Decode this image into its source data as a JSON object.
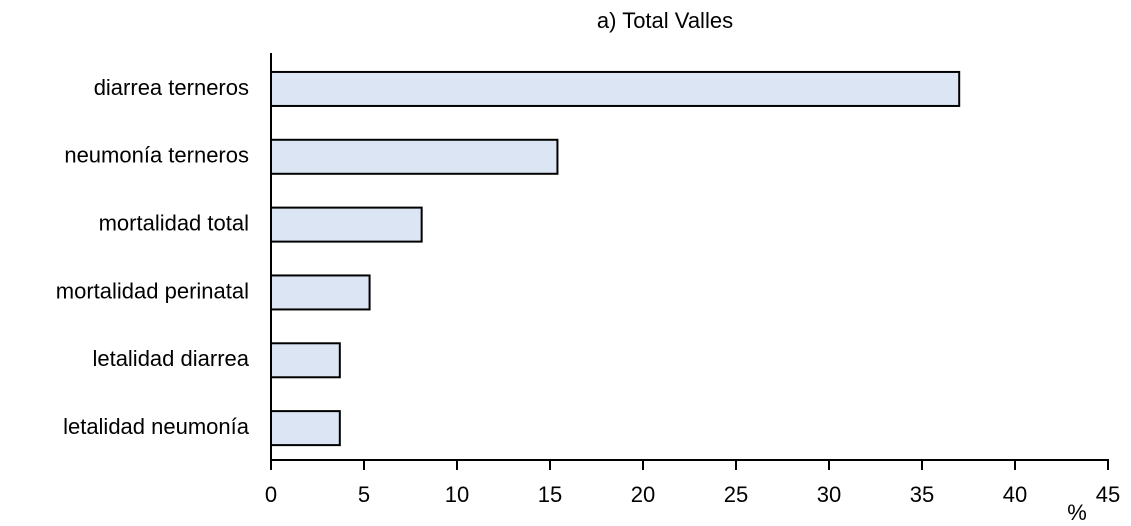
{
  "chart_data": {
    "type": "bar",
    "title": "a) Total Valles",
    "xlabel": "%",
    "categories": [
      "diarrea terneros",
      "neumonía terneros",
      "mortalidad total",
      "mortalidad perinatal",
      "letalidad diarrea",
      "letalidad neumonía"
    ],
    "values": [
      37.0,
      15.4,
      8.1,
      5.3,
      3.7,
      3.7
    ],
    "color": "#dbe5f3",
    "xlim": [
      0,
      45
    ],
    "xticks": [
      0,
      5,
      10,
      15,
      20,
      25,
      30,
      35,
      40,
      45
    ],
    "grid": false
  }
}
